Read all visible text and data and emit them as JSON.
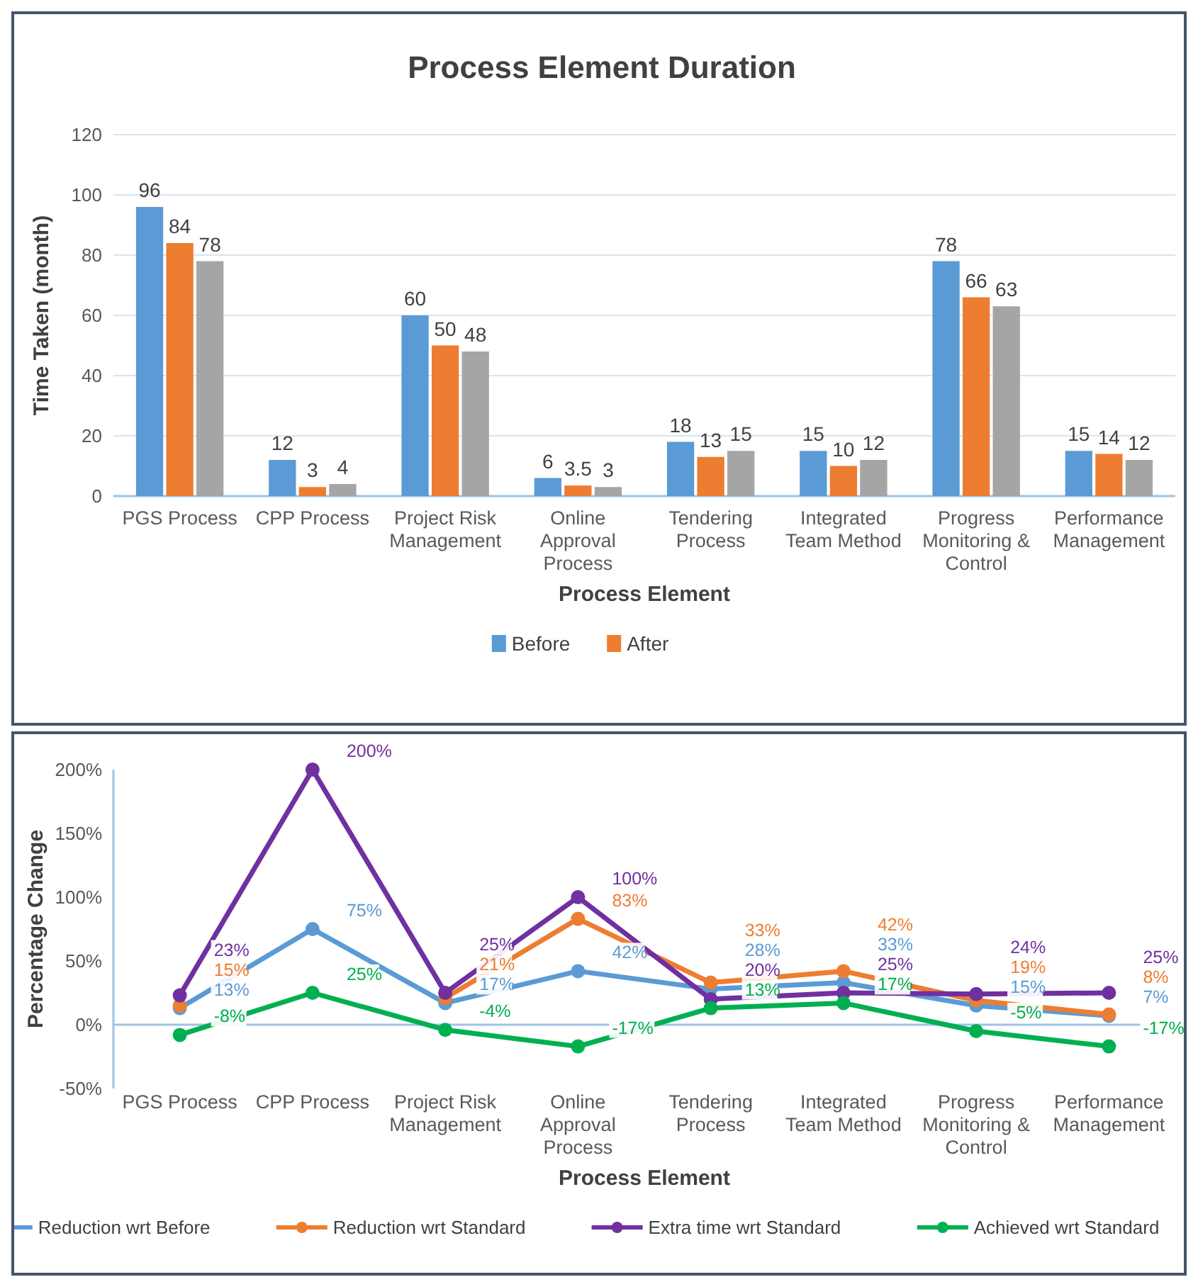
{
  "chart_data": [
    {
      "type": "bar",
      "title": "Process Element Duration",
      "xlabel": "Process Element",
      "ylabel": "Time Taken (month)",
      "categories": [
        "PGS Process",
        "CPP Process",
        "Project Risk Management",
        "Online Approval Process",
        "Tendering Process",
        "Integrated Team Method",
        "Progress Monitoring & Control",
        "Performance Management"
      ],
      "series": [
        {
          "name": "Before",
          "color": "#5b9bd5",
          "values": [
            96,
            12,
            60,
            6,
            18,
            15,
            78,
            15
          ]
        },
        {
          "name": "After",
          "color": "#ed7d31",
          "values": [
            84,
            3,
            50,
            3.5,
            13,
            10,
            66,
            14
          ]
        },
        {
          "color": "#a5a5a5",
          "values": [
            78,
            4,
            48,
            3,
            15,
            12,
            63,
            12
          ]
        }
      ],
      "ylim": [
        0,
        120
      ],
      "yticks": [
        0,
        20,
        40,
        60,
        80,
        100,
        120
      ],
      "grid": "y",
      "legend": "bottom",
      "data_labels": true
    },
    {
      "type": "line",
      "xlabel": "Process Element",
      "ylabel": "Percentage Change",
      "categories": [
        "PGS Process",
        "CPP Process",
        "Project Risk Management",
        "Online Approval Process",
        "Tendering Process",
        "Integrated Team Method",
        "Progress Monitoring & Control",
        "Performance Management"
      ],
      "series": [
        {
          "name": "Reduction wrt Before",
          "color": "#5b9bd5",
          "values": [
            13,
            75,
            17,
            42,
            28,
            33,
            15,
            7
          ],
          "value_labels": [
            "13%",
            "75%",
            "17%",
            "42%",
            "28%",
            "33%",
            "15%",
            "7%"
          ]
        },
        {
          "name": "Reduction wrt Standard",
          "color": "#ed7d31",
          "values": [
            15,
            null,
            21,
            83,
            33,
            42,
            19,
            8
          ],
          "value_labels": [
            "15%",
            null,
            "21%",
            "83%",
            "33%",
            "42%",
            "19%",
            "8%"
          ]
        },
        {
          "name": "Extra time wrt Standard",
          "color": "#7030a0",
          "values": [
            23,
            200,
            25,
            100,
            20,
            25,
            24,
            25
          ],
          "value_labels": [
            "23%",
            "200%",
            "25%",
            "100%",
            "20%",
            "25%",
            "24%",
            "25%"
          ]
        },
        {
          "name": "Achieved wrt Standard",
          "color": "#00b050",
          "values": [
            -8,
            25,
            -4,
            -17,
            13,
            17,
            -5,
            -17
          ],
          "value_labels": [
            "-8%",
            "25%",
            "-4%",
            "-17%",
            "13%",
            "17%",
            "-5%",
            "-17%"
          ]
        }
      ],
      "ylim": [
        -50,
        200
      ],
      "yticks": [
        {
          "value": -50,
          "label": "-50%"
        },
        {
          "value": 0,
          "label": "0%"
        },
        {
          "value": 50,
          "label": "50%"
        },
        {
          "value": 100,
          "label": "100%"
        },
        {
          "value": 150,
          "label": "150%"
        },
        {
          "value": 200,
          "label": "200%"
        }
      ],
      "ref_lines": [
        {
          "axis": "y",
          "value": 0,
          "color": "#9dc3e6"
        }
      ],
      "grid": false,
      "legend": "bottom",
      "marker": "circle",
      "line_style": "solid"
    }
  ]
}
